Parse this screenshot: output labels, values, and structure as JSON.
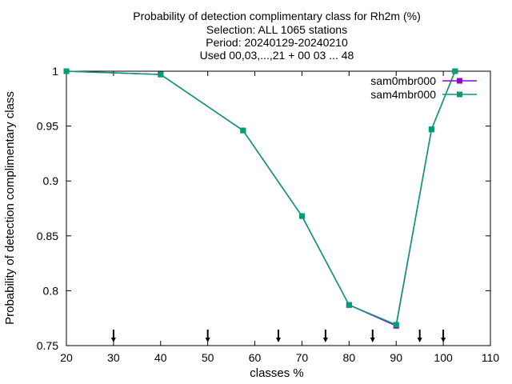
{
  "chart_data": {
    "type": "line",
    "title_lines": [
      "Probability of detection complimentary class  for Rh2m (%)",
      "Selection: ALL   1065 stations",
      "Period: 20240129-20240210",
      "Used 00,03,...,21 + 00 03 ... 48"
    ],
    "xlabel": "classes %",
    "ylabel": "Probability of detection complimentary class",
    "xlim": [
      20,
      110
    ],
    "ylim": [
      0.75,
      1.0
    ],
    "x_ticks": [
      "20",
      "30",
      "40",
      "50",
      "60",
      "70",
      "80",
      "90",
      "100",
      "110"
    ],
    "y_ticks": [
      "0.75",
      "0.8",
      "0.85",
      "0.9",
      "0.95",
      "1"
    ],
    "grid": false,
    "legend_position": "top-right",
    "series": [
      {
        "name": "sam0mbr000",
        "color": "#9400d3",
        "x": [
          20,
          40,
          57.5,
          70,
          80,
          90,
          97.5,
          102.5
        ],
        "y": [
          1.0,
          0.997,
          0.946,
          0.868,
          0.787,
          0.768,
          0.947,
          1.0
        ]
      },
      {
        "name": "sam4mbr000",
        "color": "#009e73",
        "x": [
          20,
          40,
          57.5,
          70,
          80,
          90,
          97.5,
          102.5
        ],
        "y": [
          1.0,
          0.997,
          0.946,
          0.868,
          0.787,
          0.769,
          0.947,
          1.0
        ]
      }
    ],
    "bottom_arrows_x": [
      30,
      50,
      65,
      75,
      85,
      95,
      100
    ]
  }
}
